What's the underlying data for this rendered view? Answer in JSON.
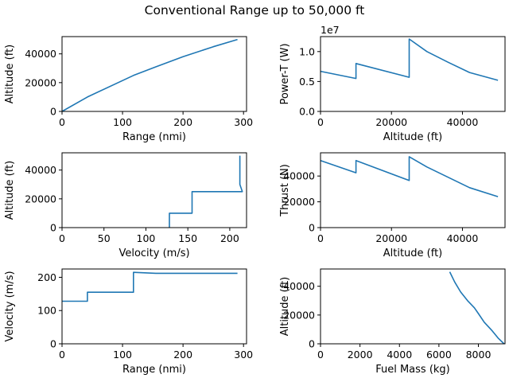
{
  "figure": {
    "title": "Conventional Range up to 50,000 ft"
  },
  "colors": {
    "series": "#1f77b4",
    "axis": "#000000",
    "background": "#ffffff"
  },
  "chart_data": [
    {
      "id": "altitude-vs-range",
      "type": "line",
      "xlabel": "Range (nmi)",
      "ylabel": "Altitude (ft)",
      "xlim": [
        0,
        305
      ],
      "ylim": [
        0,
        52000
      ],
      "xticks": [
        0,
        100,
        200,
        300
      ],
      "yticks": [
        0,
        20000,
        40000
      ],
      "offset_text": "",
      "series": [
        {
          "x": [
            0,
            42,
            118,
            155,
            200,
            250,
            290
          ],
          "y": [
            0,
            10000,
            25000,
            31000,
            38000,
            45000,
            50000
          ]
        }
      ]
    },
    {
      "id": "power-vs-altitude",
      "type": "line",
      "xlabel": "Altitude (ft)",
      "ylabel": "Power-T (W)",
      "xlim": [
        0,
        52000
      ],
      "ylim": [
        0,
        12500000
      ],
      "xticks": [
        0,
        20000,
        40000
      ],
      "yticks": [
        0,
        5000000,
        10000000
      ],
      "ytick_labels": [
        "0.0",
        "0.5",
        "1.0"
      ],
      "offset_text": "1e7",
      "series": [
        {
          "x": [
            0,
            10000,
            10000,
            25000,
            25000,
            30000,
            36000,
            42000,
            50000
          ],
          "y": [
            6700000,
            5500000,
            8000000,
            5700000,
            12100000,
            10000000,
            8200000,
            6500000,
            5200000
          ]
        }
      ]
    },
    {
      "id": "altitude-vs-velocity",
      "type": "line",
      "xlabel": "Velocity (m/s)",
      "ylabel": "Altitude (ft)",
      "xlim": [
        0,
        220
      ],
      "ylim": [
        0,
        52000
      ],
      "xticks": [
        0,
        50,
        100,
        150,
        200
      ],
      "yticks": [
        0,
        20000,
        40000
      ],
      "offset_text": "",
      "series": [
        {
          "x": [
            128,
            128,
            155,
            155,
            215,
            212,
            212
          ],
          "y": [
            0,
            10000,
            10000,
            25000,
            25000,
            30000,
            50000
          ]
        }
      ]
    },
    {
      "id": "thrust-vs-altitude",
      "type": "line",
      "xlabel": "Altitude (ft)",
      "ylabel": "Thrust (N)",
      "xlim": [
        0,
        52000
      ],
      "ylim": [
        0,
        58000
      ],
      "xticks": [
        0,
        20000,
        40000
      ],
      "yticks": [
        0,
        20000,
        40000
      ],
      "offset_text": "",
      "series": [
        {
          "x": [
            0,
            10000,
            10000,
            25000,
            25000,
            30000,
            36000,
            42000,
            50000
          ],
          "y": [
            52000,
            42500,
            52000,
            36500,
            55000,
            47000,
            39000,
            31000,
            24000
          ]
        }
      ]
    },
    {
      "id": "velocity-vs-range",
      "type": "line",
      "xlabel": "Range (nmi)",
      "ylabel": "Velocity (m/s)",
      "xlim": [
        0,
        305
      ],
      "ylim": [
        0,
        225
      ],
      "xticks": [
        0,
        100,
        200,
        300
      ],
      "yticks": [
        0,
        100,
        200
      ],
      "offset_text": "",
      "series": [
        {
          "x": [
            0,
            42,
            42,
            118,
            118,
            155,
            200,
            290
          ],
          "y": [
            128,
            128,
            155,
            155,
            215,
            212,
            212,
            212
          ]
        }
      ]
    },
    {
      "id": "altitude-vs-fuel-mass",
      "type": "line",
      "xlabel": "Fuel Mass (kg)",
      "ylabel": "Altitude (ft)",
      "xlim": [
        0,
        9350
      ],
      "ylim": [
        0,
        52000
      ],
      "xticks": [
        0,
        2000,
        4000,
        6000,
        8000
      ],
      "yticks": [
        0,
        20000,
        40000
      ],
      "offset_text": "",
      "series": [
        {
          "x": [
            6550,
            6800,
            7100,
            7450,
            7800,
            8000,
            8300,
            8700,
            9000,
            9300
          ],
          "y": [
            50000,
            43000,
            36000,
            30000,
            25000,
            21000,
            15000,
            9000,
            4000,
            0
          ]
        }
      ]
    }
  ]
}
